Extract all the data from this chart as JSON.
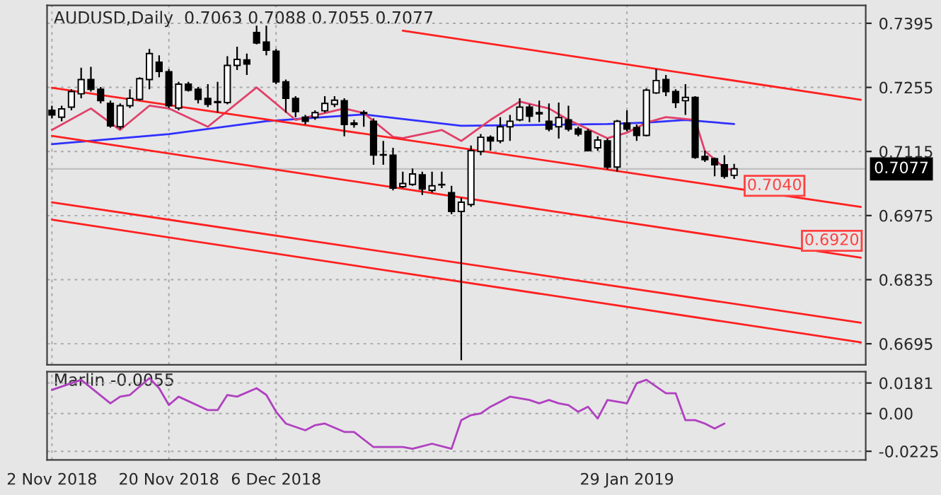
{
  "chart_data": [
    {
      "type": "candlestick",
      "title": "AUDUSD,Daily  0.7063 0.7088 0.7055 0.7077",
      "categories": [
        null,
        null,
        null,
        null,
        null,
        null,
        null,
        null,
        null,
        null,
        null,
        null,
        null,
        null,
        null,
        null,
        null,
        null,
        null,
        null,
        null,
        null,
        null,
        null,
        null,
        null,
        null,
        null,
        null,
        null,
        null,
        null,
        null,
        null,
        null,
        null,
        null,
        null,
        null,
        null,
        null,
        null,
        null,
        null,
        null,
        null,
        null,
        null,
        null,
        null,
        null,
        null,
        null,
        null,
        null,
        null,
        null,
        null,
        null,
        null,
        null,
        null,
        null,
        null,
        null,
        null,
        null,
        null,
        null,
        null,
        null,
        null,
        null,
        null,
        null,
        null,
        null,
        null,
        null,
        null,
        null,
        null,
        null,
        null
      ],
      "ohlc": [
        [
          0.7205,
          0.7215,
          0.7187,
          0.7195
        ],
        [
          0.719,
          0.7215,
          0.7181,
          0.7208
        ],
        [
          0.7212,
          0.7251,
          0.7205,
          0.7246
        ],
        [
          0.7241,
          0.7298,
          0.7231,
          0.7272
        ],
        [
          0.7272,
          0.73,
          0.7246,
          0.7251
        ],
        [
          0.7251,
          0.7256,
          0.722,
          0.7226
        ],
        [
          0.722,
          0.7226,
          0.7167,
          0.7171
        ],
        [
          0.7169,
          0.722,
          0.7164,
          0.7215
        ],
        [
          0.7215,
          0.7251,
          0.721,
          0.7231
        ],
        [
          0.7229,
          0.7277,
          0.7226,
          0.7274
        ],
        [
          0.7272,
          0.7339,
          0.7251,
          0.7329
        ],
        [
          0.731,
          0.7325,
          0.7277,
          0.729
        ],
        [
          0.7289,
          0.7295,
          0.721,
          0.7215
        ],
        [
          0.721,
          0.7267,
          0.7205,
          0.7262
        ],
        [
          0.7262,
          0.7267,
          0.7246,
          0.7249
        ],
        [
          0.7251,
          0.7256,
          0.722,
          0.7229
        ],
        [
          0.7231,
          0.7262,
          0.7212,
          0.7218
        ],
        [
          0.7224,
          0.7267,
          0.72,
          0.7222
        ],
        [
          0.7222,
          0.7323,
          0.7218,
          0.7303
        ],
        [
          0.7303,
          0.7344,
          0.7293,
          0.7316
        ],
        [
          0.7315,
          0.7329,
          0.7282,
          0.7306
        ],
        [
          0.7375,
          0.739,
          0.7349,
          0.7352
        ],
        [
          0.7354,
          0.739,
          0.7325,
          0.7336
        ],
        [
          0.7334,
          0.7339,
          0.7262,
          0.7267
        ],
        [
          0.7267,
          0.7272,
          0.72,
          0.7231
        ],
        [
          0.7231,
          0.7236,
          0.719,
          0.7202
        ],
        [
          0.719,
          0.7195,
          0.7174,
          0.7181
        ],
        [
          0.719,
          0.7205,
          0.7184,
          0.72
        ],
        [
          0.7204,
          0.7236,
          0.72,
          0.722
        ],
        [
          0.7218,
          0.7236,
          0.7212,
          0.7227
        ],
        [
          0.7226,
          0.7231,
          0.7148,
          0.7174
        ],
        [
          0.7177,
          0.7184,
          0.7167,
          0.7174
        ],
        [
          0.7198,
          0.7205,
          0.7169,
          0.72
        ],
        [
          0.7181,
          0.7187,
          0.7086,
          0.7107
        ],
        [
          0.7108,
          0.7138,
          0.7086,
          0.7107
        ],
        [
          0.7107,
          0.7123,
          0.703,
          0.7035
        ],
        [
          0.7038,
          0.7071,
          0.7035,
          0.7045
        ],
        [
          0.7043,
          0.7078,
          0.704,
          0.7066
        ],
        [
          0.7064,
          0.7071,
          0.702,
          0.7033
        ],
        [
          0.703,
          0.7071,
          0.7025,
          0.704
        ],
        [
          0.7042,
          0.7071,
          0.7035,
          0.7043
        ],
        [
          0.7025,
          0.704,
          0.6978,
          0.6984
        ],
        [
          0.6984,
          0.7014,
          0.6659,
          0.7004
        ],
        [
          0.6999,
          0.7128,
          0.6994,
          0.7117
        ],
        [
          0.7115,
          0.7153,
          0.7107,
          0.7146
        ],
        [
          0.7146,
          0.715,
          0.7117,
          0.7138
        ],
        [
          0.7138,
          0.719,
          0.7133,
          0.7169
        ],
        [
          0.7169,
          0.7195,
          0.7138,
          0.7181
        ],
        [
          0.7184,
          0.7231,
          0.7181,
          0.7212
        ],
        [
          0.7212,
          0.7218,
          0.7179,
          0.7192
        ],
        [
          0.72,
          0.7226,
          0.7179,
          0.7197
        ],
        [
          0.7181,
          0.722,
          0.7159,
          0.7164
        ],
        [
          0.7169,
          0.7222,
          0.7143,
          0.7189
        ],
        [
          0.7184,
          0.7215,
          0.7159,
          0.7164
        ],
        [
          0.7164,
          0.7169,
          0.7148,
          0.7153
        ],
        [
          0.7159,
          0.7164,
          0.7115,
          0.7117
        ],
        [
          0.7123,
          0.7148,
          0.7117,
          0.714
        ],
        [
          0.7138,
          0.7143,
          0.7076,
          0.7081
        ],
        [
          0.7081,
          0.7184,
          0.7071,
          0.7181
        ],
        [
          0.7177,
          0.7205,
          0.7159,
          0.7164
        ],
        [
          0.7167,
          0.7174,
          0.7138,
          0.715
        ],
        [
          0.715,
          0.7253,
          0.7148,
          0.7249
        ],
        [
          0.7243,
          0.7295,
          0.7241,
          0.727
        ],
        [
          0.7272,
          0.7282,
          0.7236,
          0.7246
        ],
        [
          0.7246,
          0.7251,
          0.721,
          0.7222
        ],
        [
          0.7226,
          0.7262,
          0.7195,
          0.7233
        ],
        [
          0.7233,
          0.7236,
          0.7099,
          0.7102
        ],
        [
          0.7104,
          0.7117,
          0.7092,
          0.7097
        ],
        [
          0.7099,
          0.7102,
          0.7061,
          0.7086
        ],
        [
          0.7086,
          0.7107,
          0.7056,
          0.7061
        ],
        [
          0.7063,
          0.7088,
          0.7055,
          0.7077
        ],
        null,
        null,
        null,
        null,
        null,
        null,
        null,
        null,
        null,
        null,
        null,
        null,
        null
      ],
      "series": [
        {
          "type": "line",
          "color": "#3030ff",
          "values": [
            0.7131,
            null,
            null,
            null,
            null,
            null,
            null,
            null,
            null,
            null,
            null,
            null,
            0.7153,
            null,
            null,
            null,
            null,
            null,
            null,
            null,
            null,
            null,
            0.7181,
            null,
            null,
            null,
            null,
            null,
            null,
            null,
            0.7193,
            null,
            0.7196,
            null,
            null,
            null,
            null,
            null,
            null,
            null,
            null,
            null,
            0.7171,
            null,
            null,
            null,
            null,
            null,
            null,
            null,
            null,
            null,
            null,
            null,
            null,
            null,
            null,
            0.7175,
            null,
            null,
            null,
            0.7178,
            null,
            null,
            null,
            0.7184,
            null,
            null,
            null,
            null,
            0.7175,
            null,
            null,
            null,
            null,
            null,
            null,
            null,
            null,
            null,
            null,
            null,
            null,
            null
          ]
        },
        {
          "type": "line",
          "color": "#e0406a",
          "values": [
            0.7162,
            null,
            null,
            null,
            0.7209,
            null,
            null,
            0.7162,
            null,
            null,
            0.7215,
            null,
            0.7209,
            null,
            null,
            null,
            0.7169,
            null,
            null,
            null,
            null,
            0.7255,
            null,
            null,
            null,
            0.7184,
            null,
            null,
            0.7199,
            null,
            0.7209,
            null,
            0.7199,
            null,
            null,
            0.7147,
            0.7144,
            null,
            null,
            null,
            0.7162,
            null,
            0.7138,
            null,
            null,
            0.7184,
            null,
            null,
            0.7224,
            null,
            null,
            0.7209,
            null,
            0.7184,
            null,
            null,
            null,
            0.7144,
            null,
            0.7156,
            null,
            0.7178,
            null,
            0.719,
            null,
            null,
            0.7184,
            0.7116,
            null,
            0.7079,
            0.7073,
            null,
            null,
            null,
            null,
            null,
            null,
            null,
            null,
            null,
            null,
            null,
            null,
            null
          ]
        },
        {
          "type": "line",
          "color": "#ff2020",
          "values": [
            null,
            null,
            null,
            null,
            null,
            null,
            null,
            null,
            null,
            null,
            null,
            null,
            null,
            null,
            null,
            null,
            null,
            null,
            null,
            null,
            null,
            null,
            null,
            null,
            null,
            null,
            null,
            null,
            null,
            null,
            null,
            null,
            null,
            null,
            null,
            null,
            0.7379,
            null,
            null,
            null,
            null,
            null,
            null,
            null,
            null,
            null,
            null,
            null,
            null,
            null,
            null,
            null,
            null,
            null,
            null,
            null,
            null,
            null,
            null,
            null,
            null,
            null,
            null,
            null,
            null,
            null,
            null,
            null,
            null,
            null,
            null,
            null,
            null,
            null,
            null,
            null,
            null,
            null,
            null,
            null,
            null,
            null,
            null,
            0.7228
          ]
        },
        {
          "type": "line",
          "color": "#ff2020",
          "values": [
            0.7254,
            null,
            null,
            null,
            null,
            null,
            null,
            null,
            null,
            null,
            null,
            null,
            null,
            null,
            null,
            null,
            null,
            null,
            null,
            null,
            null,
            null,
            null,
            null,
            null,
            null,
            null,
            null,
            null,
            null,
            null,
            null,
            null,
            null,
            null,
            null,
            null,
            null,
            null,
            null,
            null,
            null,
            null,
            null,
            null,
            null,
            null,
            null,
            null,
            null,
            null,
            null,
            null,
            null,
            null,
            null,
            null,
            null,
            null,
            null,
            null,
            null,
            null,
            null,
            null,
            null,
            null,
            null,
            null,
            null,
            null,
            null,
            null,
            null,
            null,
            null,
            null,
            null,
            null,
            null,
            null,
            null,
            null,
            0.6994
          ]
        },
        {
          "type": "line",
          "color": "#ff2020",
          "values": [
            0.7149,
            null,
            null,
            null,
            null,
            null,
            null,
            null,
            null,
            null,
            null,
            null,
            null,
            null,
            null,
            null,
            null,
            null,
            null,
            null,
            null,
            null,
            null,
            null,
            null,
            null,
            null,
            null,
            null,
            null,
            null,
            null,
            null,
            null,
            null,
            null,
            null,
            null,
            null,
            null,
            null,
            null,
            null,
            null,
            null,
            null,
            null,
            null,
            null,
            null,
            null,
            null,
            null,
            null,
            null,
            null,
            null,
            null,
            null,
            null,
            null,
            null,
            null,
            null,
            null,
            null,
            null,
            null,
            null,
            null,
            null,
            null,
            null,
            null,
            null,
            null,
            null,
            null,
            null,
            null,
            null,
            null,
            null,
            0.6883
          ]
        },
        {
          "type": "line",
          "color": "#ff2020",
          "values": [
            0.7004,
            null,
            null,
            null,
            null,
            null,
            null,
            null,
            null,
            null,
            null,
            null,
            null,
            null,
            null,
            null,
            null,
            null,
            null,
            null,
            null,
            null,
            null,
            null,
            null,
            null,
            null,
            null,
            null,
            null,
            null,
            null,
            null,
            null,
            null,
            null,
            null,
            null,
            null,
            null,
            null,
            null,
            null,
            null,
            null,
            null,
            null,
            null,
            null,
            null,
            null,
            null,
            null,
            null,
            null,
            null,
            null,
            null,
            null,
            null,
            null,
            null,
            null,
            null,
            null,
            null,
            null,
            null,
            null,
            null,
            null,
            null,
            null,
            null,
            null,
            null,
            null,
            null,
            null,
            null,
            null,
            null,
            null,
            0.6741
          ]
        },
        {
          "type": "line",
          "color": "#ff2020",
          "values": [
            0.6966,
            null,
            null,
            null,
            null,
            null,
            null,
            null,
            null,
            null,
            null,
            null,
            null,
            null,
            null,
            null,
            null,
            null,
            null,
            null,
            null,
            null,
            null,
            null,
            null,
            null,
            null,
            null,
            null,
            null,
            null,
            null,
            null,
            null,
            null,
            null,
            null,
            null,
            null,
            null,
            null,
            null,
            null,
            null,
            null,
            null,
            null,
            null,
            null,
            null,
            null,
            null,
            null,
            null,
            null,
            null,
            null,
            null,
            null,
            null,
            null,
            null,
            null,
            null,
            null,
            null,
            null,
            null,
            null,
            null,
            null,
            null,
            null,
            null,
            null,
            null,
            null,
            null,
            null,
            null,
            null,
            null,
            null,
            0.6698
          ]
        }
      ],
      "ylim": [
        0.6649,
        0.7434
      ],
      "yticks": [
        0.7395,
        0.7255,
        0.7115,
        0.6975,
        0.6835,
        0.6695
      ],
      "ref_lines": [
        {
          "axis": "y",
          "value": 0.7077,
          "label": "0.7077",
          "color": "#c0c0c0"
        }
      ],
      "annotations": [
        {
          "text": "0.7040",
          "y": 0.704
        },
        {
          "text": "0.6920",
          "y": 0.692
        }
      ],
      "grid": true,
      "tick_labels": "y"
    },
    {
      "type": "line",
      "title": "Marlin -0.0055",
      "color": "#b040c0",
      "categories": [
        "2 Nov 2018",
        null,
        null,
        null,
        null,
        null,
        null,
        null,
        null,
        null,
        null,
        null,
        "20 Nov 2018",
        null,
        null,
        null,
        null,
        null,
        null,
        null,
        null,
        null,
        null,
        "6 Dec 2018",
        null,
        null,
        null,
        null,
        null,
        null,
        null,
        null,
        null,
        null,
        null,
        null,
        null,
        null,
        null,
        null,
        null,
        null,
        null,
        null,
        null,
        null,
        null,
        null,
        null,
        null,
        null,
        null,
        null,
        null,
        null,
        null,
        null,
        null,
        null,
        "29 Jan 2019",
        null,
        null,
        null,
        null,
        null,
        null,
        null,
        null,
        null,
        null,
        null,
        null,
        null,
        null,
        null,
        null,
        null,
        null,
        null,
        null,
        null,
        null,
        null,
        null
      ],
      "values": [
        0.014,
        null,
        null,
        0.02,
        null,
        null,
        0.006,
        0.01,
        0.011,
        null,
        0.021,
        0.015,
        0.005,
        0.01,
        null,
        null,
        0.002,
        0.002,
        0.011,
        0.01,
        null,
        0.015,
        0.011,
        0.001,
        -0.006,
        null,
        -0.01,
        -0.007,
        -0.006,
        null,
        -0.011,
        -0.011,
        null,
        -0.02,
        -0.02,
        null,
        -0.02,
        -0.021,
        null,
        -0.018,
        null,
        -0.021,
        -0.004,
        -0.001,
        0,
        0.004,
        null,
        0.01,
        null,
        0.008,
        0.006,
        0.008,
        0.006,
        0.005,
        0.001,
        0.004,
        -0.003,
        0.008,
        null,
        0.006,
        0.018,
        0.02,
        null,
        0.012,
        0.012,
        -0.004,
        -0.004,
        -0.006,
        -0.009,
        -0.006,
        null,
        null,
        null,
        null,
        null,
        null,
        null,
        null,
        null,
        null,
        null,
        null,
        null,
        null
      ],
      "ylim": [
        -0.0276,
        0.0248
      ],
      "yticks": [
        0.0181,
        {
          "value": 0,
          "label": "0.00"
        },
        -0.0225
      ],
      "grid": true
    }
  ]
}
